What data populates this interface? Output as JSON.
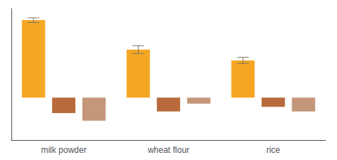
{
  "chart_data": {
    "type": "bar",
    "categories": [
      "milk powder",
      "wheat flour",
      "rice"
    ],
    "series": [
      {
        "color": "#F5A623",
        "values": [
          100,
          62,
          48
        ],
        "errors": [
          3,
          5,
          4
        ]
      },
      {
        "color": "#B86A3A",
        "values": [
          -20,
          -18,
          -12
        ]
      },
      {
        "color": "#C4967A",
        "values": [
          -30,
          -8,
          -18
        ]
      }
    ],
    "ylim": [
      -55,
      115
    ],
    "yticks": [],
    "grid": false,
    "tick_labels": "x"
  }
}
